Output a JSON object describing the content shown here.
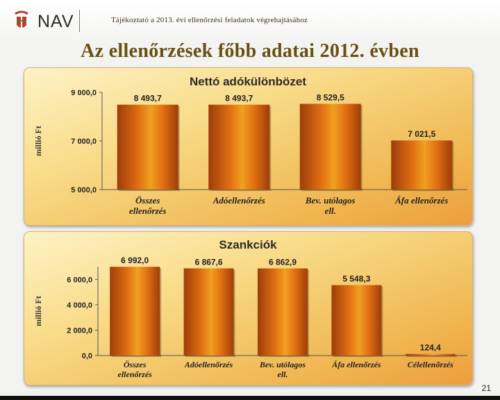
{
  "header": {
    "logo_text": "NAV",
    "subtitle": "Tájékoztató a 2013. évi ellenőrzési feladatok végrehajtásához"
  },
  "slide": {
    "title": "Az ellenőrzések főbb adatai 2012. évben",
    "page_number": "21"
  },
  "colors": {
    "bar_dark": "#9e3d0a",
    "bar_mid": "#e06f12",
    "bar_light": "#f0a020",
    "title_color": "#6b4f12"
  },
  "chart_data": [
    {
      "type": "bar",
      "title": "Nettó adókülönbözet",
      "ylabel": "millió Ft",
      "ylim": [
        5000,
        9000
      ],
      "yticks": [
        5000,
        7000,
        9000
      ],
      "ytick_labels": [
        "5 000,0",
        "7 000,0",
        "9 000,0"
      ],
      "categories": [
        [
          "Összes",
          "ellenőrzés"
        ],
        [
          "Adóellenőrzés"
        ],
        [
          "Bev. utólagos",
          "ell."
        ],
        [
          "Áfa ellenőrzés"
        ]
      ],
      "values": [
        8493.7,
        8493.7,
        8529.5,
        7021.5
      ],
      "value_labels": [
        "8 493,7",
        "8 493,7",
        "8 529,5",
        "7 021,5"
      ]
    },
    {
      "type": "bar",
      "title": "Szankciók",
      "ylabel": "millió Ft",
      "ylim": [
        0,
        7000
      ],
      "yticks": [
        0,
        2000,
        4000,
        6000
      ],
      "ytick_labels": [
        "0,0",
        "2 000,0",
        "4 000,0",
        "6 000,0"
      ],
      "categories": [
        [
          "Összes",
          "ellenőrzés"
        ],
        [
          "Adóellenőrzés"
        ],
        [
          "Bev. utólagos",
          "ell."
        ],
        [
          "Áfa ellenőrzés"
        ],
        [
          "Célellenőrzés"
        ]
      ],
      "values": [
        6992.0,
        6867.6,
        6862.9,
        5548.3,
        124.4
      ],
      "value_labels": [
        "6 992,0",
        "6 867,6",
        "6 862,9",
        "5 548,3",
        "124,4"
      ]
    }
  ]
}
